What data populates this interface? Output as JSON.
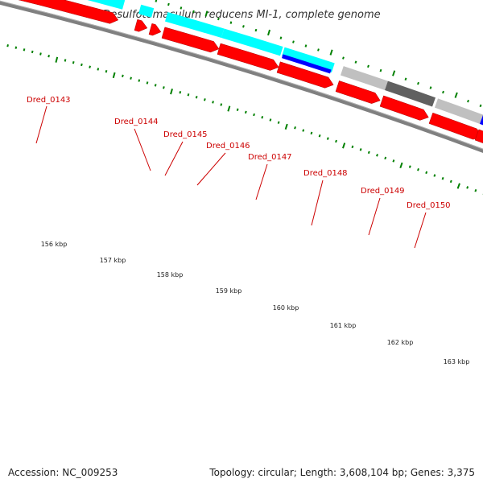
{
  "title": "Desulfotomaculum reducens MI-1, complete genome",
  "footer": {
    "accession": "Accession: NC_009253",
    "summary": "Topology: circular; Length: 3,608,104 bp; Genes: 3,375"
  },
  "colors": {
    "background": "#ffffff",
    "backbone": "#808080",
    "cds": "#ff0000",
    "cyan_feature": "#00ffff",
    "blue_feature": "#0000ff",
    "light_gray_feature": "#c0c0c0",
    "dark_gray_feature": "#606060",
    "ticks": "#008000",
    "labels": "#cc0000"
  },
  "scale_labels": [
    "156 kbp",
    "157 kbp",
    "158 kbp",
    "159 kbp",
    "160 kbp",
    "161 kbp",
    "162 kbp",
    "163 kbp"
  ],
  "gene_labels": [
    "Dred_0143",
    "Dred_0144",
    "Dred_0145",
    "Dred_0146",
    "Dred_0147",
    "Dred_0148",
    "Dred_0149",
    "Dred_0150"
  ]
}
